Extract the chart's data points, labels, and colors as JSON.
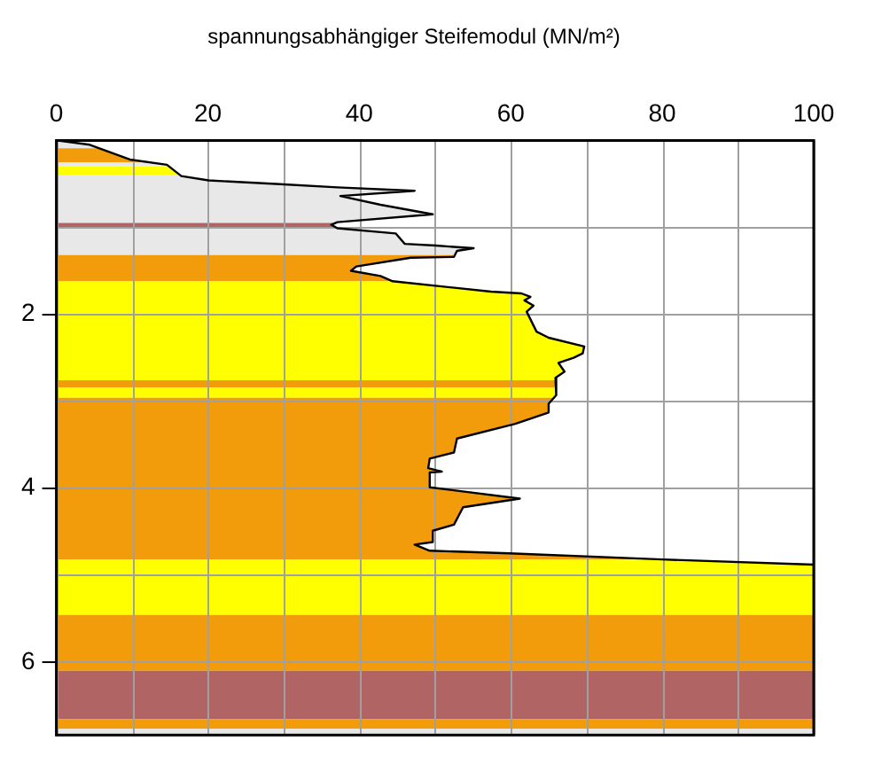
{
  "chart_data": {
    "type": "line",
    "title": "spannungsabhängiger Steifemodul (MN/m²)",
    "x": [
      0,
      4.4,
      9.7,
      14.6,
      16.5,
      20.1,
      29.0,
      37.1,
      47.3,
      37.5,
      42.8,
      49.7,
      37.1,
      36.3,
      37.1,
      44.8,
      46.0,
      50.1,
      55.1,
      52.9,
      52.5,
      46.8,
      39.6,
      38.9,
      42.8,
      44.4,
      57.4,
      61.4,
      62.6,
      61.8,
      63.0,
      62.1,
      63.4,
      65.0,
      69.7,
      69.5,
      68.3,
      66.3,
      67.1,
      65.9,
      66.0,
      65.0,
      65.0,
      60.6,
      52.9,
      52.5,
      49.3,
      49.1,
      50.9,
      49.3,
      49.3,
      61.2,
      53.7,
      52.5,
      49.7,
      49.7,
      47.3,
      49.3,
      59.8,
      80.0,
      100
    ],
    "values": [
      0,
      0.05,
      0.22,
      0.28,
      0.41,
      0.46,
      0.5,
      0.54,
      0.58,
      0.64,
      0.74,
      0.85,
      0.94,
      0.97,
      1.01,
      1.07,
      1.19,
      1.21,
      1.24,
      1.27,
      1.34,
      1.35,
      1.45,
      1.5,
      1.56,
      1.62,
      1.74,
      1.76,
      1.8,
      1.84,
      1.9,
      1.97,
      2.2,
      2.27,
      2.37,
      2.45,
      2.5,
      2.56,
      2.66,
      2.73,
      2.93,
      3.03,
      3.13,
      3.26,
      3.43,
      3.59,
      3.66,
      3.77,
      3.81,
      3.82,
      3.99,
      4.12,
      4.22,
      4.42,
      4.49,
      4.62,
      4.65,
      4.72,
      4.75,
      4.82,
      4.88
    ],
    "color": "#000000",
    "xlim": [
      0,
      100
    ],
    "xticks": [
      0,
      {
        "value": 10,
        "label": null
      },
      20,
      {
        "value": 30,
        "label": null
      },
      40,
      {
        "value": 50,
        "label": null
      },
      60,
      {
        "value": 70,
        "label": null
      },
      80,
      {
        "value": 90,
        "label": null
      },
      100
    ],
    "ylim": [
      6.84,
      0
    ],
    "yticks": [
      {
        "value": 0,
        "label": null
      },
      {
        "value": 1,
        "label": null
      },
      2,
      {
        "value": 3,
        "label": null
      },
      4,
      {
        "value": 5,
        "label": null
      },
      6
    ],
    "bands": [
      {
        "axis": "y",
        "from": 0,
        "to": 0.09,
        "color": "#e8e8e8"
      },
      {
        "axis": "y",
        "from": 0.09,
        "to": 0.25,
        "color": "#f29c0c"
      },
      {
        "axis": "y",
        "from": 0.25,
        "to": 0.3,
        "color": "#e8e8e8"
      },
      {
        "axis": "y",
        "from": 0.3,
        "to": 0.4,
        "color": "#ffff00"
      },
      {
        "axis": "y",
        "from": 0.4,
        "to": 0.95,
        "color": "#e8e8e8"
      },
      {
        "axis": "y",
        "from": 0.95,
        "to": 1.01,
        "color": "#b06464"
      },
      {
        "axis": "y",
        "from": 1.01,
        "to": 1.32,
        "color": "#e8e8e8"
      },
      {
        "axis": "y",
        "from": 1.32,
        "to": 1.62,
        "color": "#f29c0c"
      },
      {
        "axis": "y",
        "from": 1.62,
        "to": 2.76,
        "color": "#ffff00"
      },
      {
        "axis": "y",
        "from": 2.76,
        "to": 2.84,
        "color": "#f29c0c"
      },
      {
        "axis": "y",
        "from": 2.84,
        "to": 2.96,
        "color": "#ffff00"
      },
      {
        "axis": "y",
        "from": 2.96,
        "to": 4.82,
        "color": "#f29c0c"
      },
      {
        "axis": "y",
        "from": 4.82,
        "to": 5.46,
        "color": "#ffff00"
      },
      {
        "axis": "y",
        "from": 5.46,
        "to": 6.1,
        "color": "#f29c0c"
      },
      {
        "axis": "y",
        "from": 6.1,
        "to": 6.66,
        "color": "#b06464"
      },
      {
        "axis": "y",
        "from": 6.66,
        "to": 6.77,
        "color": "#f29c0c"
      },
      {
        "axis": "y",
        "from": 6.77,
        "to": 6.84,
        "color": "#e8e8e8"
      }
    ],
    "grid": true,
    "marker": "none",
    "line_style": "solid",
    "legend": false
  }
}
